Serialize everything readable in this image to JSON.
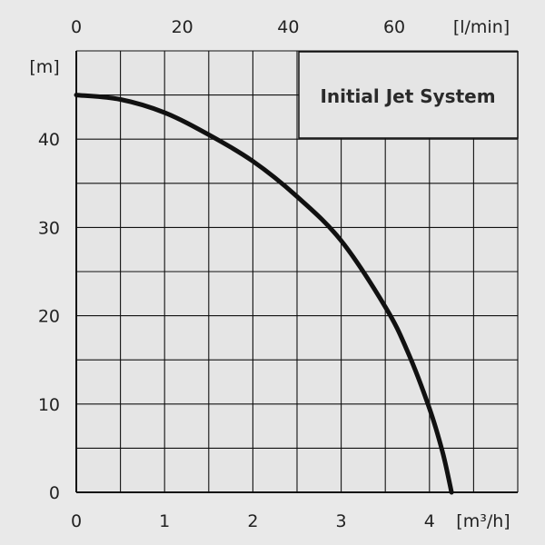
{
  "chart_data": {
    "type": "line",
    "title": "Initial Jet System",
    "x_bottom": {
      "unit_label": "[m³/h]",
      "range": [
        0,
        5
      ],
      "ticks": [
        0,
        1,
        2,
        3,
        4
      ],
      "tick_labels": [
        "0",
        "1",
        "2",
        "3",
        "4"
      ]
    },
    "x_top": {
      "unit_label": "[l/min]",
      "range": [
        0,
        83.3
      ],
      "ticks": [
        0,
        20,
        40,
        60
      ],
      "tick_labels": [
        "0",
        "20",
        "40",
        "60"
      ]
    },
    "y": {
      "unit_label": "[m]",
      "range": [
        0,
        50
      ],
      "ticks": [
        0,
        10,
        20,
        30,
        40
      ],
      "tick_labels": [
        "0",
        "10",
        "20",
        "30",
        "40"
      ]
    },
    "grid": true,
    "series": [
      {
        "color": "#111111",
        "x": [
          0,
          0.5,
          1.0,
          1.5,
          2.0,
          2.5,
          3.0,
          3.5,
          3.75,
          4.0,
          4.15,
          4.25
        ],
        "y": [
          45,
          44.5,
          43,
          40.5,
          37.5,
          33.5,
          28.5,
          21,
          16,
          9.5,
          4.5,
          0
        ]
      }
    ]
  }
}
